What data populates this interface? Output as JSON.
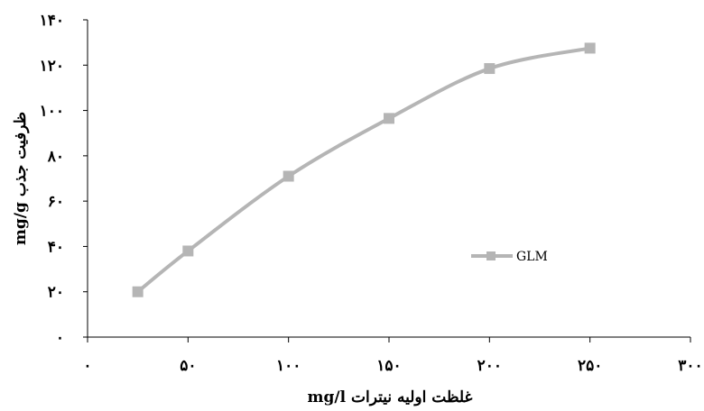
{
  "chart_data": {
    "type": "line",
    "title": "",
    "xlabel": "غلظت اولیه نیترات mg/l",
    "ylabel": "ظرفیت جذب mg/g",
    "xlim": [
      0,
      300
    ],
    "ylim": [
      0,
      140
    ],
    "x_ticks": [
      0,
      50,
      100,
      150,
      200,
      250,
      300
    ],
    "y_ticks": [
      0,
      20,
      40,
      60,
      80,
      100,
      120,
      140
    ],
    "x_tick_labels": [
      "۰",
      "۵۰",
      "۱۰۰",
      "۱۵۰",
      "۲۰۰",
      "۲۵۰",
      "۳۰۰"
    ],
    "y_tick_labels": [
      "۰",
      "۲۰",
      "۴۰",
      "۶۰",
      "۸۰",
      "۱۰۰",
      "۱۲۰",
      "۱۴۰"
    ],
    "grid": false,
    "legend_position": "right-middle",
    "series": [
      {
        "name": "GLM",
        "color": "#b5b5b5",
        "marker": "square",
        "smooth": true,
        "x": [
          25,
          50,
          100,
          150,
          200,
          250
        ],
        "y": [
          20,
          38,
          71,
          96.5,
          118.5,
          127.5
        ]
      }
    ]
  }
}
